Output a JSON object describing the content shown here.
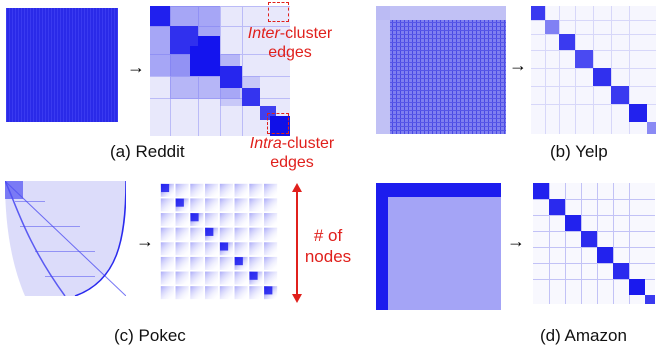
{
  "panels": [
    {
      "caption": "(a) Reddit"
    },
    {
      "caption": "(b) Yelp"
    },
    {
      "caption": "(c) Pokec"
    },
    {
      "caption": "(d) Amazon"
    }
  ],
  "annotations": {
    "inter_em": "Inter",
    "inter_rest": "-cluster",
    "inter_line2": "edges",
    "intra_em": "Intra",
    "intra_rest": "-cluster",
    "intra_line2": "edges",
    "nodes_line1": "# of",
    "nodes_line2": "nodes"
  },
  "colors": {
    "blue": "#1b1bf0",
    "red": "#e0201c"
  }
}
